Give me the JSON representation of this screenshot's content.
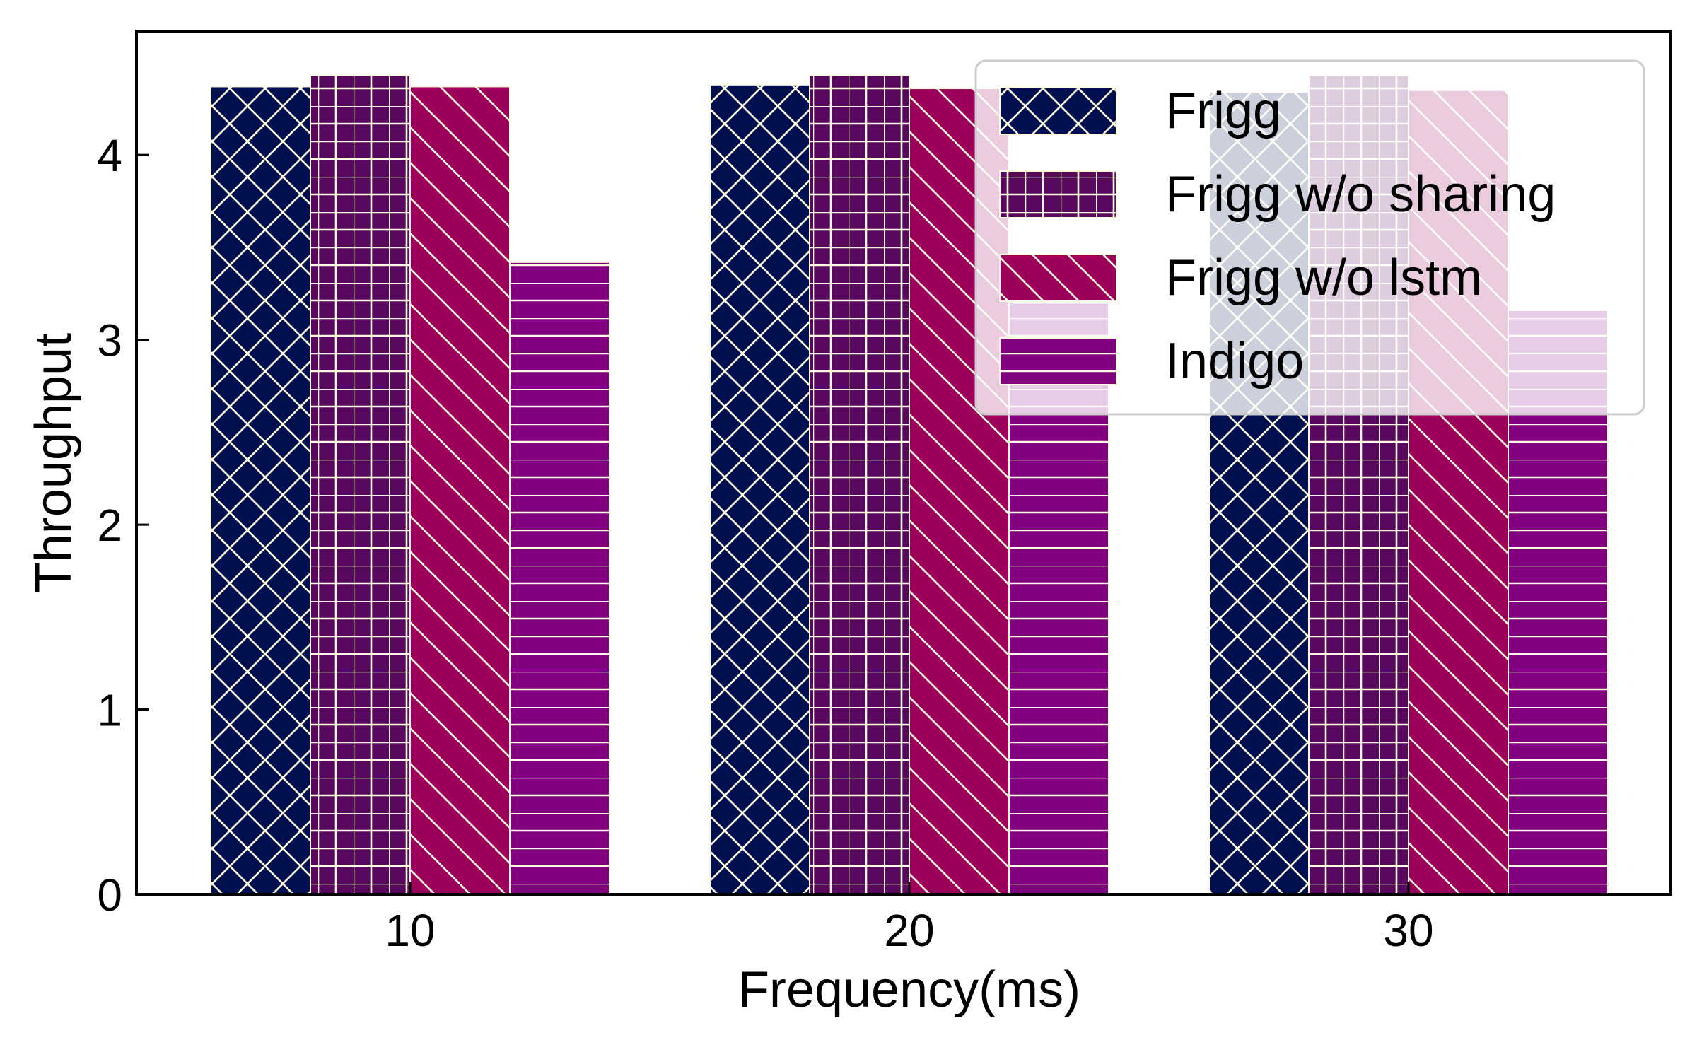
{
  "chart_data": {
    "type": "bar",
    "title": "",
    "xlabel": "Frequency(ms)",
    "ylabel": "Throughput",
    "categories": [
      "10",
      "20",
      "30"
    ],
    "ylim": [
      0,
      4.67
    ],
    "yticks": [
      "0",
      "1",
      "2",
      "3",
      "4"
    ],
    "grid": false,
    "legend_position": "top-right",
    "series": [
      {
        "name": "Frigg",
        "values": [
          4.37,
          4.38,
          4.34
        ],
        "color": "#000f4f",
        "hatch": "x"
      },
      {
        "name": "Frigg w/o sharing",
        "values": [
          4.43,
          4.43,
          4.43
        ],
        "color": "#58085f",
        "hatch": "+"
      },
      {
        "name": "Frigg w/o lstm",
        "values": [
          4.37,
          4.36,
          4.35
        ],
        "color": "#9c005a",
        "hatch": "\\"
      },
      {
        "name": "Indigo",
        "values": [
          3.42,
          3.2,
          3.16
        ],
        "color": "#820080",
        "hatch": "-"
      }
    ],
    "hatch_color": "#fffbe0"
  }
}
